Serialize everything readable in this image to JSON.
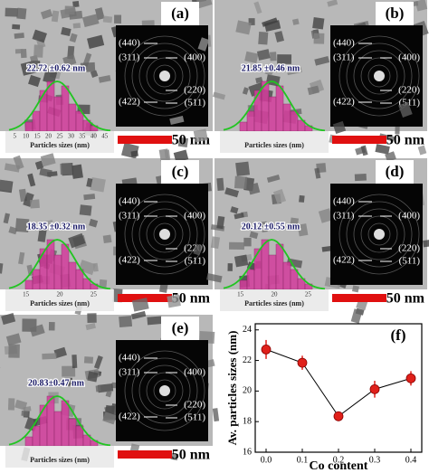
{
  "panels": [
    {
      "label": "(a)",
      "size_text": "22.72 ±0.62 nm",
      "scale_text": "50 nm",
      "hist_label": "Particles sizes (nm)",
      "hist_ticks": [
        "5",
        "10",
        "15",
        "20",
        "25",
        "30",
        "35",
        "40",
        "45"
      ],
      "rings": [
        "(440)",
        "(311)",
        "(422)",
        "(400)",
        "(220)",
        "(511)"
      ]
    },
    {
      "label": "(b)",
      "size_text": "21.85 ±0.46 nm",
      "scale_text": "50 nm",
      "hist_label": "Particles sizes (nm)",
      "hist_ticks": [],
      "rings": [
        "(440)",
        "(311)",
        "(422)",
        "(400)",
        "(220)",
        "(511)"
      ]
    },
    {
      "label": "(c)",
      "size_text": "18.35 ±0.32 nm",
      "scale_text": "50 nm",
      "hist_label": "Particles sizes (nm)",
      "hist_ticks": [
        "15",
        "20",
        "25"
      ],
      "rings": [
        "(440)",
        "(311)",
        "(422)",
        "(400)",
        "(220)",
        "(511)"
      ]
    },
    {
      "label": "(d)",
      "size_text": "20.12 ±0.55 nm",
      "scale_text": "50 nm",
      "hist_label": "Particles sizes (nm)",
      "hist_ticks": [
        "15",
        "20",
        "25"
      ],
      "rings": [
        "(440)",
        "(311)",
        "(422)",
        "(400)",
        "(220)",
        "(511)"
      ]
    },
    {
      "label": "(e)",
      "size_text": "20.83±0.47 nm",
      "scale_text": "50 nm",
      "hist_label": "Particles sizes (nm)",
      "hist_ticks": [],
      "rings": [
        "(440)",
        "(311)",
        "(422)",
        "(400)",
        "(220)",
        "(511)"
      ]
    }
  ],
  "chart_data": {
    "type": "scatter",
    "panel_label": "(f)",
    "x_label": "Co content",
    "y_label": "Av. particles sizes (nm)",
    "x": [
      0,
      0.1,
      0.2,
      0.3,
      0.4
    ],
    "values": [
      22.72,
      21.85,
      18.35,
      20.12,
      20.83
    ],
    "errors": [
      0.62,
      0.46,
      0.32,
      0.55,
      0.47
    ],
    "color": "#e0201a",
    "line_color": "#000000",
    "xlim": [
      -0.03,
      0.43
    ],
    "xticks": [
      {
        "value": 0,
        "label": "0.0"
      },
      0.1,
      0.2,
      0.3,
      0.4
    ],
    "ylim": [
      16,
      24.4
    ],
    "yticks": [
      16,
      18,
      20,
      22,
      24
    ]
  }
}
